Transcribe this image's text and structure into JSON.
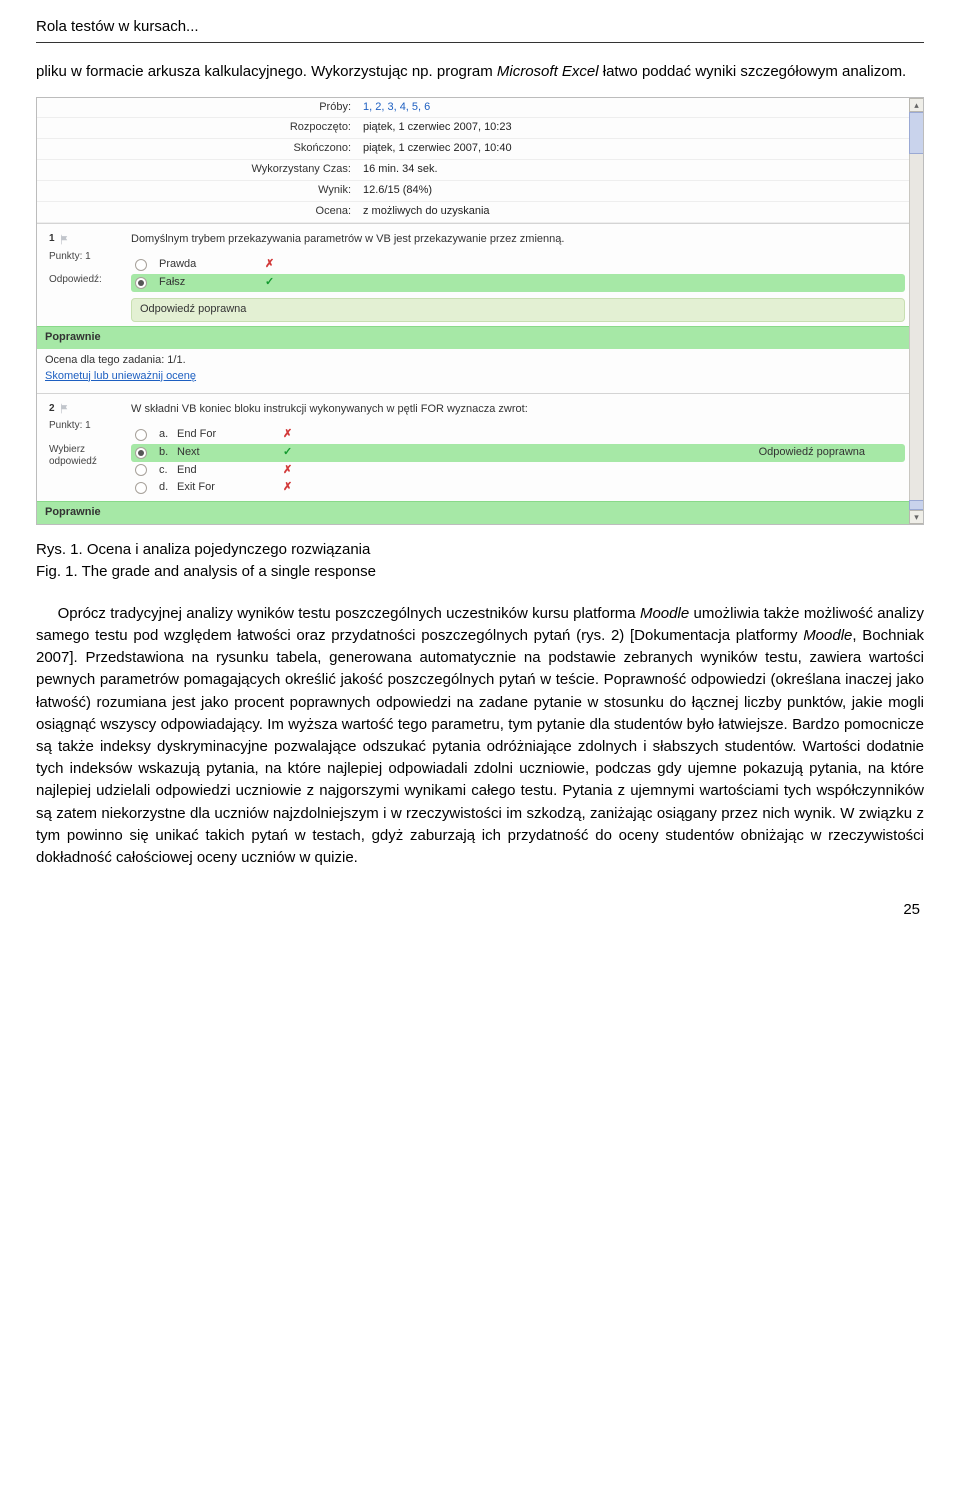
{
  "header": {
    "running_title": "Rola testów w kursach..."
  },
  "intro": {
    "line1_a": "pliku w formacie arkusza kalkulacyjnego. Wykorzystując np. program ",
    "line1_b": "Microsoft Excel",
    "line2": " łatwo poddać wyniki szczegółowym analizom."
  },
  "summary": {
    "rows": [
      {
        "label": "Próby:",
        "value": "1, 2, 3, 4, 5, 6",
        "link": true
      },
      {
        "label": "Rozpoczęto:",
        "value": "piątek, 1 czerwiec 2007, 10:23"
      },
      {
        "label": "Skończono:",
        "value": "piątek, 1 czerwiec 2007, 10:40"
      },
      {
        "label": "Wykorzystany Czas:",
        "value": "16 min. 34 sek."
      },
      {
        "label": "Wynik:",
        "value": "12.6/15 (84%)"
      },
      {
        "label": "Ocena:",
        "value": "z możliwych do uzyskania"
      }
    ]
  },
  "q1": {
    "num": "1",
    "points": "Punkty: 1",
    "select_label": "Odpowiedź:",
    "text": "Domyślnym trybem przekazywania parametrów w VB jest przekazywanie przez zmienną.",
    "opts": [
      {
        "label": "Prawda",
        "selected": false,
        "correct": false,
        "mark": "✗"
      },
      {
        "label": "Fałsz",
        "selected": true,
        "correct": true,
        "mark": "✓"
      }
    ],
    "feedback": "Odpowiedź poprawna",
    "poprawnie": "Poprawnie",
    "grade_line": "Ocena dla tego zadania: 1/1.",
    "comment_link": "Skometuj lub unieważnij ocenę"
  },
  "q2": {
    "num": "2",
    "points": "Punkty: 1",
    "select_label": "Wybierz odpowiedź",
    "text": "W składni VB koniec bloku instrukcji wykonywanych w pętli FOR wyznacza zwrot:",
    "opts": [
      {
        "key": "a.",
        "label": "End For",
        "selected": false,
        "correct": false,
        "mark": "✗",
        "fb": ""
      },
      {
        "key": "b.",
        "label": "Next",
        "selected": true,
        "correct": true,
        "mark": "✓",
        "fb": "Odpowiedź poprawna"
      },
      {
        "key": "c.",
        "label": "End",
        "selected": false,
        "correct": false,
        "mark": "✗",
        "fb": ""
      },
      {
        "key": "d.",
        "label": "Exit For",
        "selected": false,
        "correct": false,
        "mark": "✗",
        "fb": ""
      }
    ],
    "poprawnie": "Poprawnie"
  },
  "caption": {
    "l1": "Rys. 1. Ocena i analiza pojedynczego rozwiązania",
    "l2": "Fig. 1. The grade and analysis of a single response"
  },
  "body": {
    "p": "Oprócz tradycyjnej analizy wyników testu poszczególnych uczestników kursu platforma Moodle umożliwia także możliwość analizy samego testu pod względem łatwości oraz przydatności poszczególnych pytań (rys. 2) [Dokumentacja platformy Moodle, Bochniak 2007]. Przedstawiona na rysunku tabela, generowana automatycznie na podstawie zebranych wyników testu, zawiera wartości pewnych parametrów pomagających określić jakość poszczególnych pytań w teście. Poprawność odpowiedzi (określana inaczej jako łatwość) rozumiana jest jako procent poprawnych odpowiedzi na zadane pytanie w stosunku do łącznej liczby punktów, jakie mogli osiągnąć wszyscy odpowiadający. Im wyższa wartość tego parametru, tym pytanie dla studentów było łatwiejsze. Bardzo pomocnicze są także indeksy dyskryminacyjne pozwalające odszukać pytania odróżniające zdolnych i słabszych studentów. Wartości dodatnie tych indeksów wskazują pytania, na które najlepiej odpowiadali zdolni uczniowie, podczas gdy ujemne pokazują pytania, na które najlepiej udzielali odpowiedzi uczniowie z najgorszymi wynikami całego testu. Pytania z ujemnymi wartościami tych współczynników są zatem niekorzystne dla uczniów najzdolniejszym i w rzeczywistości im szkodzą, zaniżając osiągany przez nich wynik. W związku z tym powinno się unikać takich pytań w testach, gdyż zaburzają ich przydatność do oceny studentów obniżając w rzeczywistości dokładność całościowej oceny uczniów w quizie.",
    "italic1": "Moodle",
    "italic2": "Moodle"
  },
  "footer": {
    "pagenum": "25"
  },
  "colors": {
    "correct_bg": "#a6e8a6",
    "feedback_bg": "#e3f0d3",
    "link": "#1d5fc1",
    "wrong": "#d23a3a",
    "right": "#149a2f"
  }
}
